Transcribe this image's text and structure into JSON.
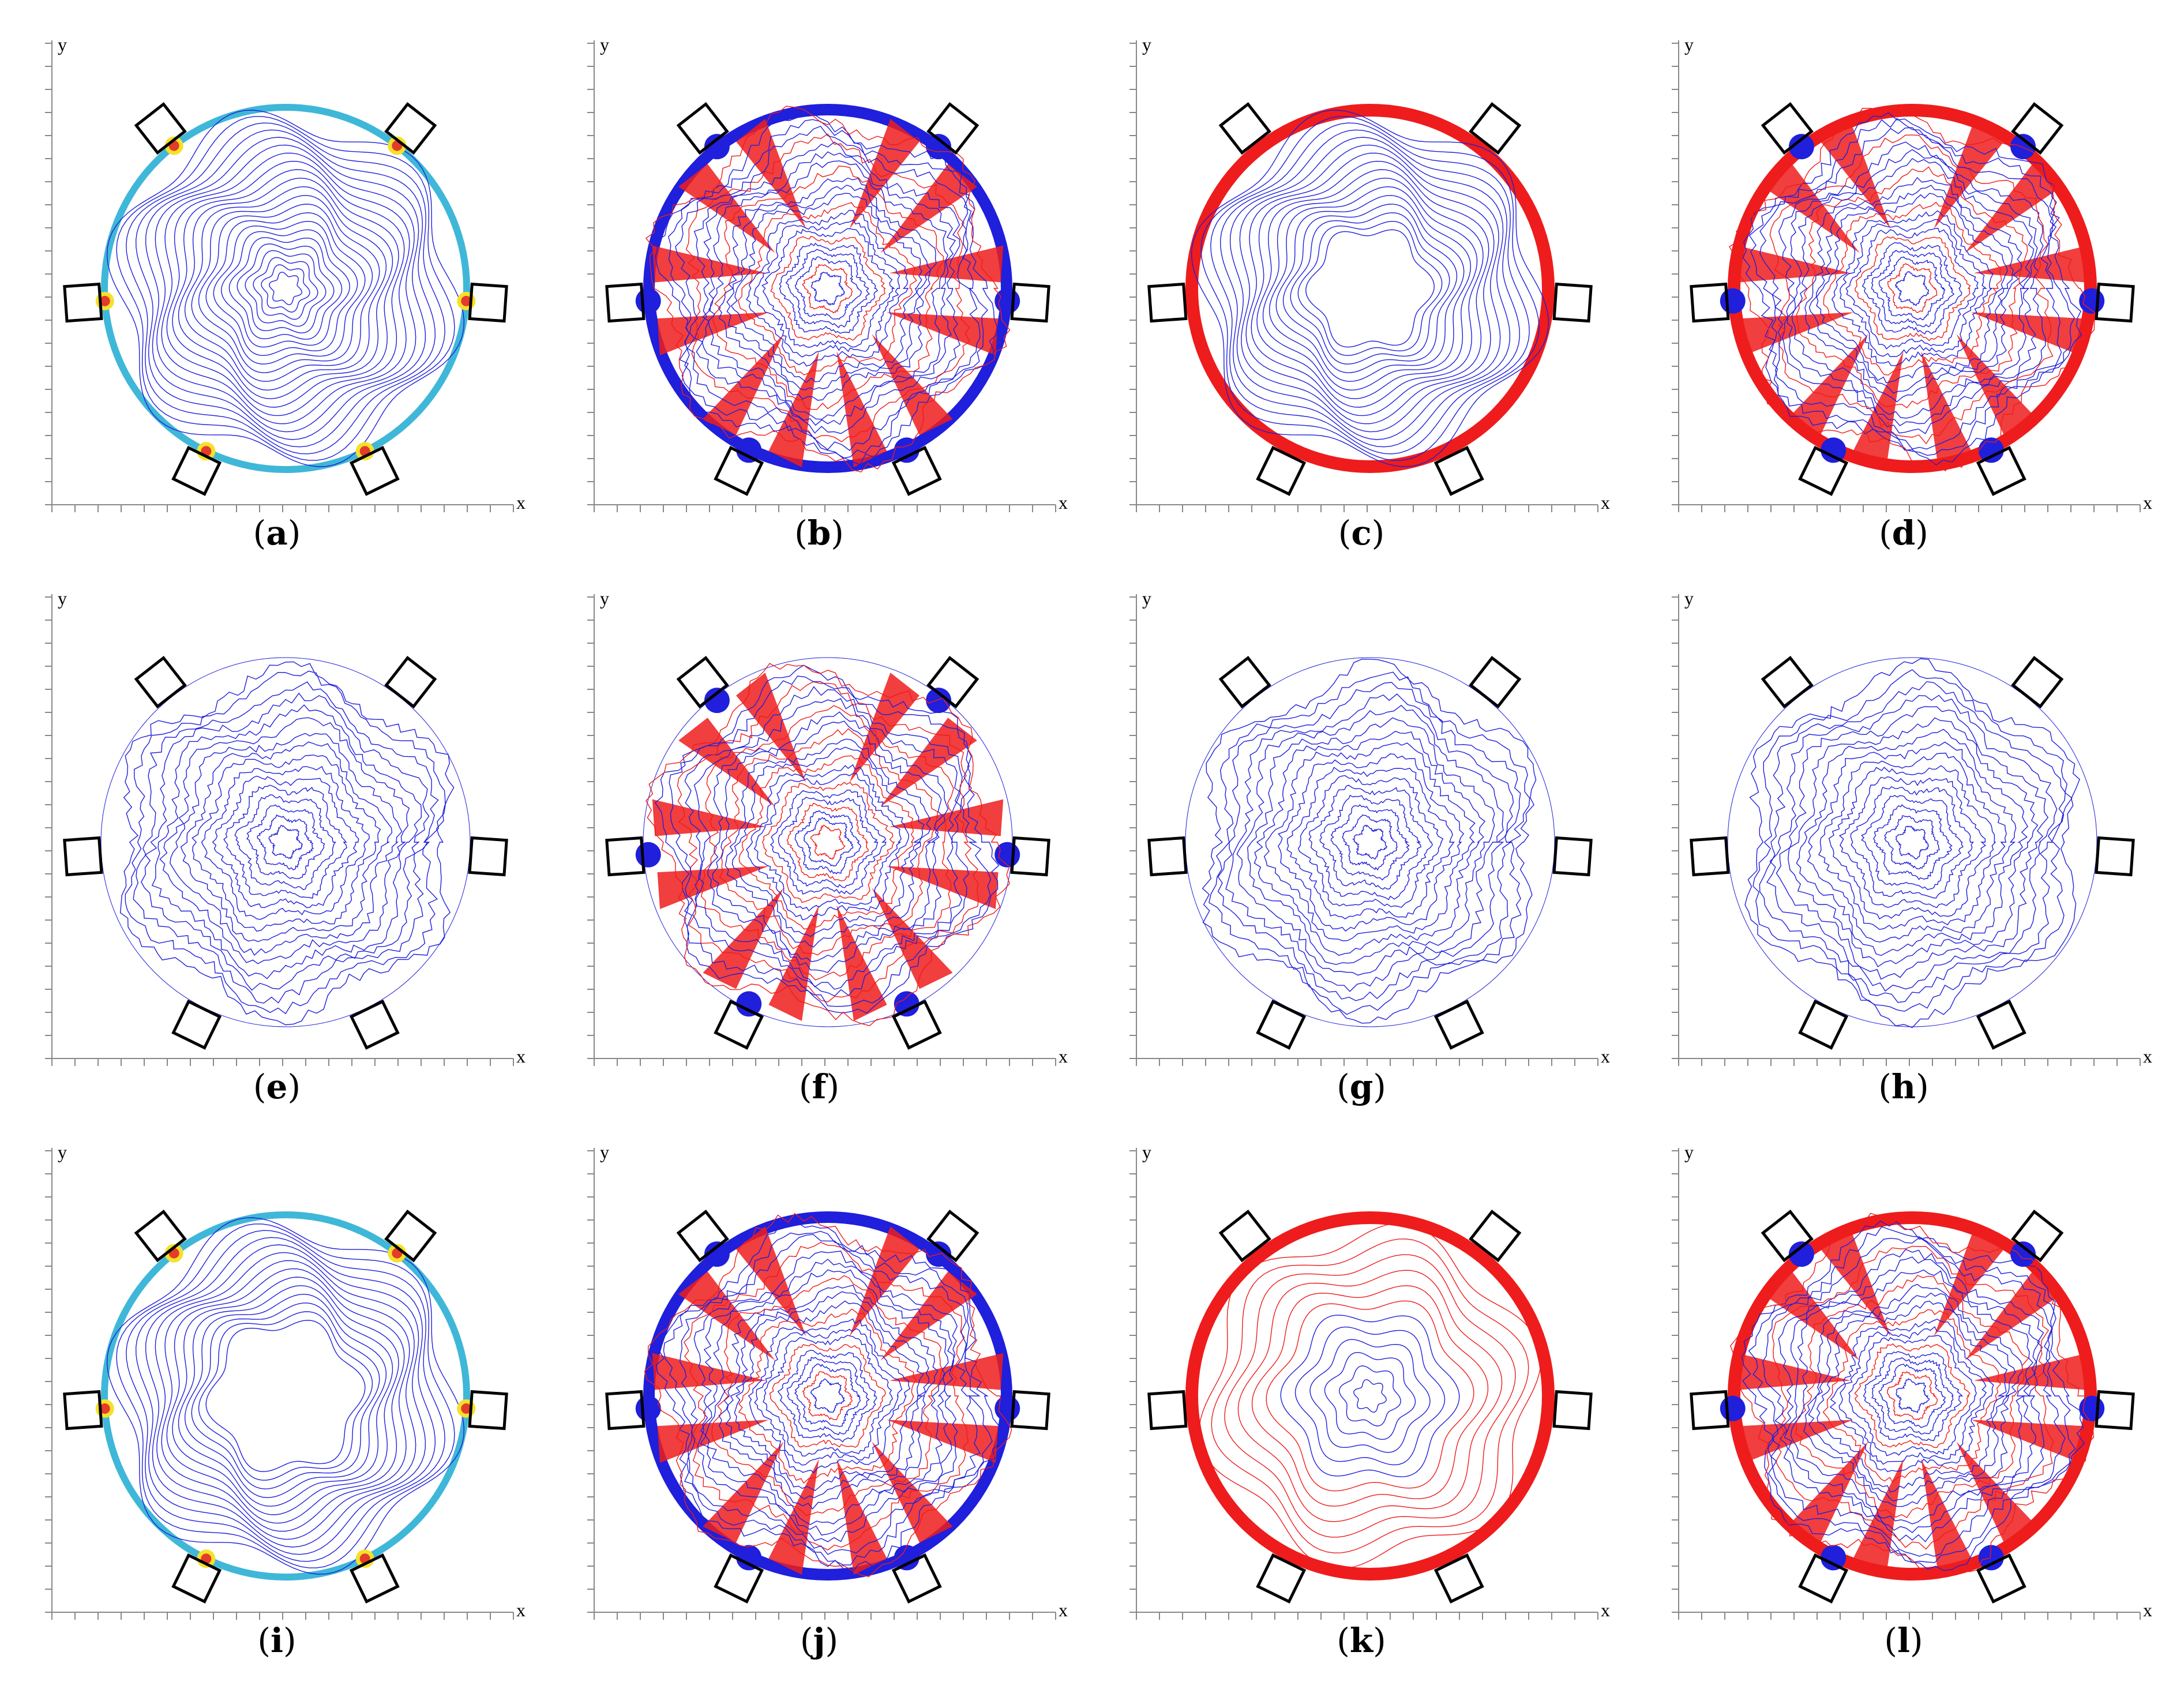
{
  "axis_labels": {
    "x": "x",
    "y": "y"
  },
  "colors": {
    "blue": "#1f1fdc",
    "red": "#ee1c1c",
    "box": "#000000"
  },
  "panels": [
    {
      "id": "a",
      "label": "a",
      "style": "rainbow"
    },
    {
      "id": "b",
      "label": "b",
      "style": "mixed-blue-rim"
    },
    {
      "id": "c",
      "label": "c",
      "style": "red-rim"
    },
    {
      "id": "d",
      "label": "d",
      "style": "mixed-red-rim"
    },
    {
      "id": "e",
      "label": "e",
      "style": "blue-sparse"
    },
    {
      "id": "f",
      "label": "f",
      "style": "mixed-sparse"
    },
    {
      "id": "g",
      "label": "g",
      "style": "blue-sparse"
    },
    {
      "id": "h",
      "label": "h",
      "style": "blue-sparse"
    },
    {
      "id": "i",
      "label": "i",
      "style": "rainbow-hollow"
    },
    {
      "id": "j",
      "label": "j",
      "style": "mixed-blue-rim"
    },
    {
      "id": "k",
      "label": "k",
      "style": "red-fill"
    },
    {
      "id": "l",
      "label": "l",
      "style": "mixed-red-rim"
    }
  ]
}
